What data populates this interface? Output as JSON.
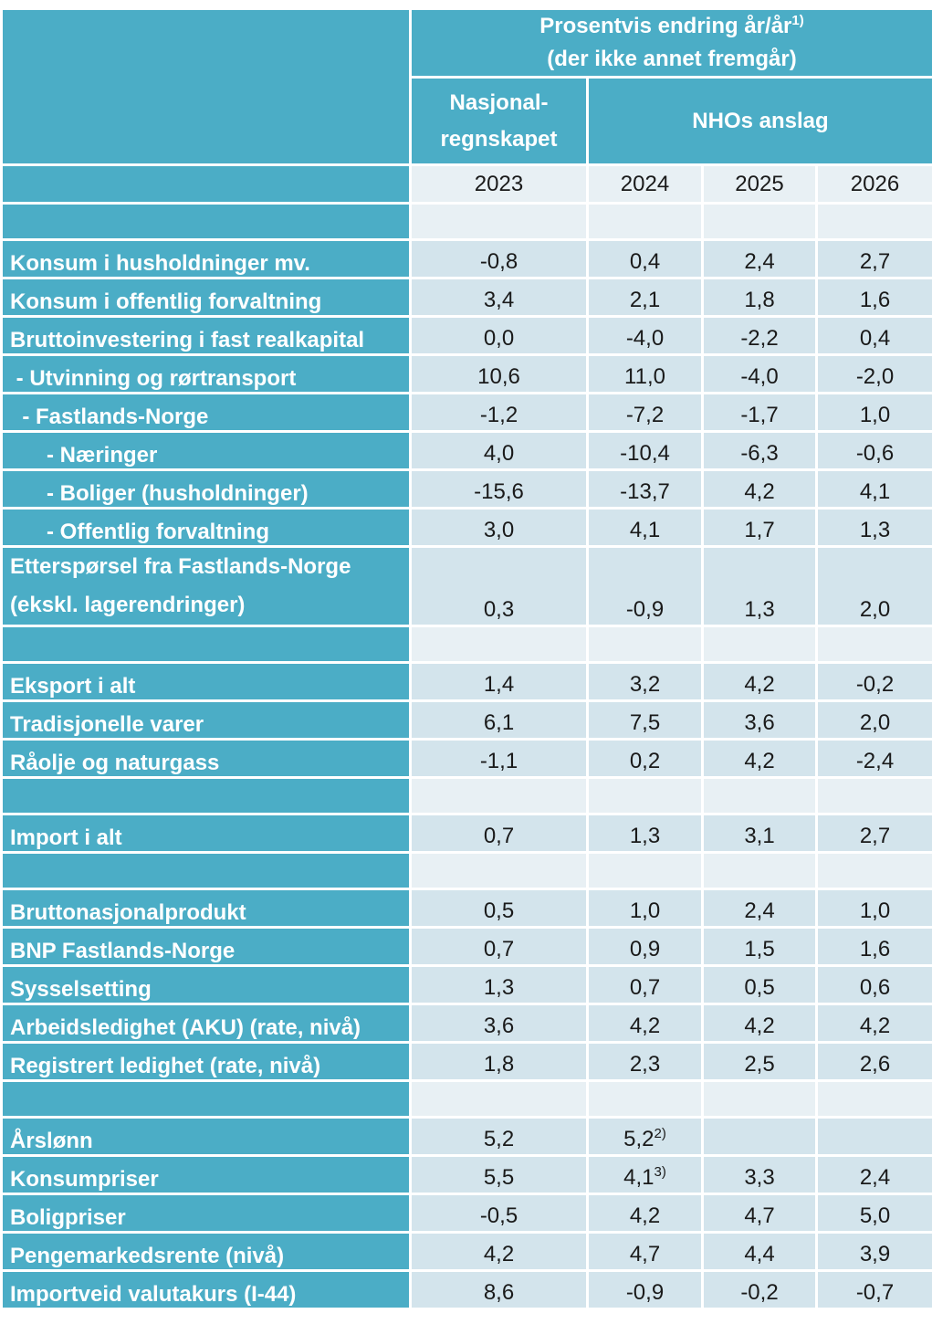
{
  "header": {
    "main_line1": "Prosentvis endring år/år",
    "main_line1_sup": "1)",
    "main_line2": "(der ikke annet fremgår)",
    "col_na_line1": "Nasjonal-",
    "col_na_line2": "regnskapet",
    "col_nho": "NHOs anslag"
  },
  "years": [
    "2023",
    "2024",
    "2025",
    "2026"
  ],
  "rows": [
    {
      "type": "blank"
    },
    {
      "type": "data",
      "label": "Konsum i husholdninger mv.",
      "values": [
        "-0,8",
        "0,4",
        "2,4",
        "2,7"
      ]
    },
    {
      "type": "data",
      "label": "Konsum i offentlig forvaltning",
      "values": [
        "3,4",
        "2,1",
        "1,8",
        "1,6"
      ]
    },
    {
      "type": "data",
      "label": "Bruttoinvestering i fast realkapital",
      "values": [
        "0,0",
        "-4,0",
        "-2,2",
        "0,4"
      ]
    },
    {
      "type": "data",
      "label": " - Utvinning og rørtransport",
      "values": [
        "10,6",
        "11,0",
        "-4,0",
        "-2,0"
      ]
    },
    {
      "type": "data",
      "label": "  - Fastlands-Norge",
      "values": [
        "-1,2",
        "-7,2",
        "-1,7",
        "1,0"
      ]
    },
    {
      "type": "data",
      "label": "      - Næringer",
      "values": [
        "4,0",
        "-10,4",
        "-6,3",
        "-0,6"
      ]
    },
    {
      "type": "data",
      "label": "      - Boliger (husholdninger)",
      "values": [
        "-15,6",
        "-13,7",
        "4,2",
        "4,1"
      ]
    },
    {
      "type": "data",
      "label": "      - Offentlig forvaltning",
      "values": [
        "3,0",
        "4,1",
        "1,7",
        "1,3"
      ]
    },
    {
      "type": "data2",
      "label": "Etterspørsel fra Fastlands-Norge",
      "label2": "(ekskl. lagerendringer)",
      "values": [
        "0,3",
        "-0,9",
        "1,3",
        "2,0"
      ]
    },
    {
      "type": "blank"
    },
    {
      "type": "data",
      "label": "Eksport i alt",
      "values": [
        "1,4",
        "3,2",
        "4,2",
        "-0,2"
      ]
    },
    {
      "type": "data",
      "label": "Tradisjonelle varer",
      "values": [
        "6,1",
        "7,5",
        "3,6",
        "2,0"
      ]
    },
    {
      "type": "data",
      "label": "Råolje og naturgass",
      "values": [
        "-1,1",
        "0,2",
        "4,2",
        "-2,4"
      ]
    },
    {
      "type": "blank"
    },
    {
      "type": "data",
      "label": "Import i alt",
      "values": [
        "0,7",
        "1,3",
        "3,1",
        "2,7"
      ]
    },
    {
      "type": "blank"
    },
    {
      "type": "data",
      "label": "Bruttonasjonalprodukt",
      "values": [
        "0,5",
        "1,0",
        "2,4",
        "1,0"
      ]
    },
    {
      "type": "data",
      "label": "BNP Fastlands-Norge",
      "values": [
        "0,7",
        "0,9",
        "1,5",
        "1,6"
      ]
    },
    {
      "type": "data",
      "label": "Sysselsetting",
      "values": [
        "1,3",
        "0,7",
        "0,5",
        "0,6"
      ]
    },
    {
      "type": "data",
      "label": "Arbeidsledighet (AKU) (rate, nivå)",
      "values": [
        "3,6",
        "4,2",
        "4,2",
        "4,2"
      ]
    },
    {
      "type": "data",
      "label": "Registrert ledighet (rate, nivå)",
      "values": [
        "1,8",
        "2,3",
        "2,5",
        "2,6"
      ]
    },
    {
      "type": "blank"
    },
    {
      "type": "data",
      "label": "Årslønn",
      "values": [
        "5,2",
        "5,2",
        "",
        ""
      ],
      "sups": [
        "",
        "2)",
        "",
        ""
      ]
    },
    {
      "type": "data",
      "label": "Konsumpriser",
      "values": [
        "5,5",
        "4,1",
        "3,3",
        "2,4"
      ],
      "sups": [
        "",
        "3)",
        "",
        ""
      ]
    },
    {
      "type": "data",
      "label": "Boligpriser",
      "values": [
        "-0,5",
        "4,2",
        "4,7",
        "5,0"
      ]
    },
    {
      "type": "data",
      "label": "Pengemarkedsrente (nivå)",
      "values": [
        "4,2",
        "4,7",
        "4,4",
        "3,9"
      ]
    },
    {
      "type": "data",
      "label": "Importveid valutakurs (I-44)",
      "values": [
        "8,6",
        "-0,9",
        "-0,2",
        "-0,7"
      ]
    }
  ],
  "colors": {
    "header_bg": "#4badc6",
    "cell_bg": "#d3e4ec",
    "cell_alt_bg": "#e8f0f4"
  }
}
